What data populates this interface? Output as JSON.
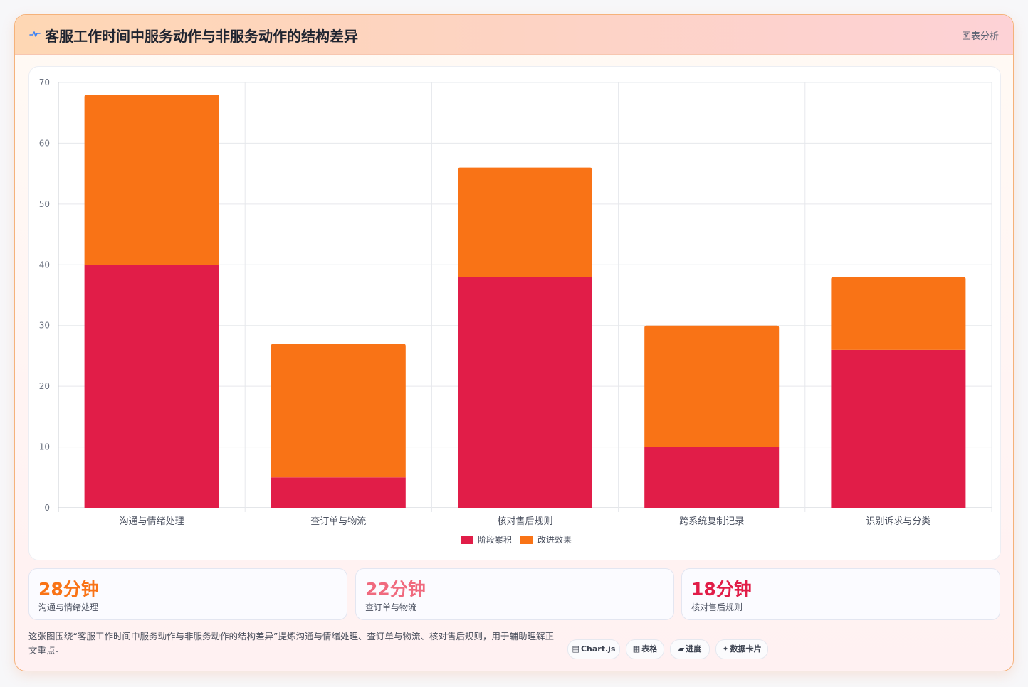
{
  "header": {
    "title": "客服工作时间中服务动作与非服务动作的结构差异",
    "tag": "图表分析",
    "icon": "pulse-icon"
  },
  "chart_data": {
    "type": "bar",
    "stacked": true,
    "categories": [
      "沟通与情绪处理",
      "查订单与物流",
      "核对售后规则",
      "跨系统复制记录",
      "识别诉求与分类"
    ],
    "series": [
      {
        "name": "阶段累积",
        "color": "#e11d48",
        "values": [
          40,
          5,
          38,
          10,
          26
        ]
      },
      {
        "name": "改进效果",
        "color": "#f97316",
        "values": [
          28,
          22,
          18,
          20,
          12
        ]
      }
    ],
    "ylim": [
      0,
      70
    ],
    "yticks": [
      0,
      10,
      20,
      30,
      40,
      50,
      60,
      70
    ],
    "grid": true,
    "legend": "bottom"
  },
  "kpis": [
    {
      "value": "28分钟",
      "label": "沟通与情绪处理",
      "color": "#f97316"
    },
    {
      "value": "22分钟",
      "label": "查订单与物流",
      "color": "#f06a7e"
    },
    {
      "value": "18分钟",
      "label": "核对售后规则",
      "color": "#e11d48"
    }
  ],
  "footnote": "这张图围绕“客服工作时间中服务动作与非服务动作的结构差异”提炼沟通与情绪处理、查订单与物流、核对售后规则，用于辅助理解正文重点。",
  "chips": [
    {
      "glyph": "▤",
      "label": "Chart.js",
      "icon": "chart-icon"
    },
    {
      "glyph": "▦",
      "label": "表格",
      "icon": "table-icon"
    },
    {
      "glyph": "▰",
      "label": "进度",
      "icon": "progress-icon"
    },
    {
      "glyph": "✦",
      "label": "数据卡片",
      "icon": "sparkle-icon"
    }
  ]
}
